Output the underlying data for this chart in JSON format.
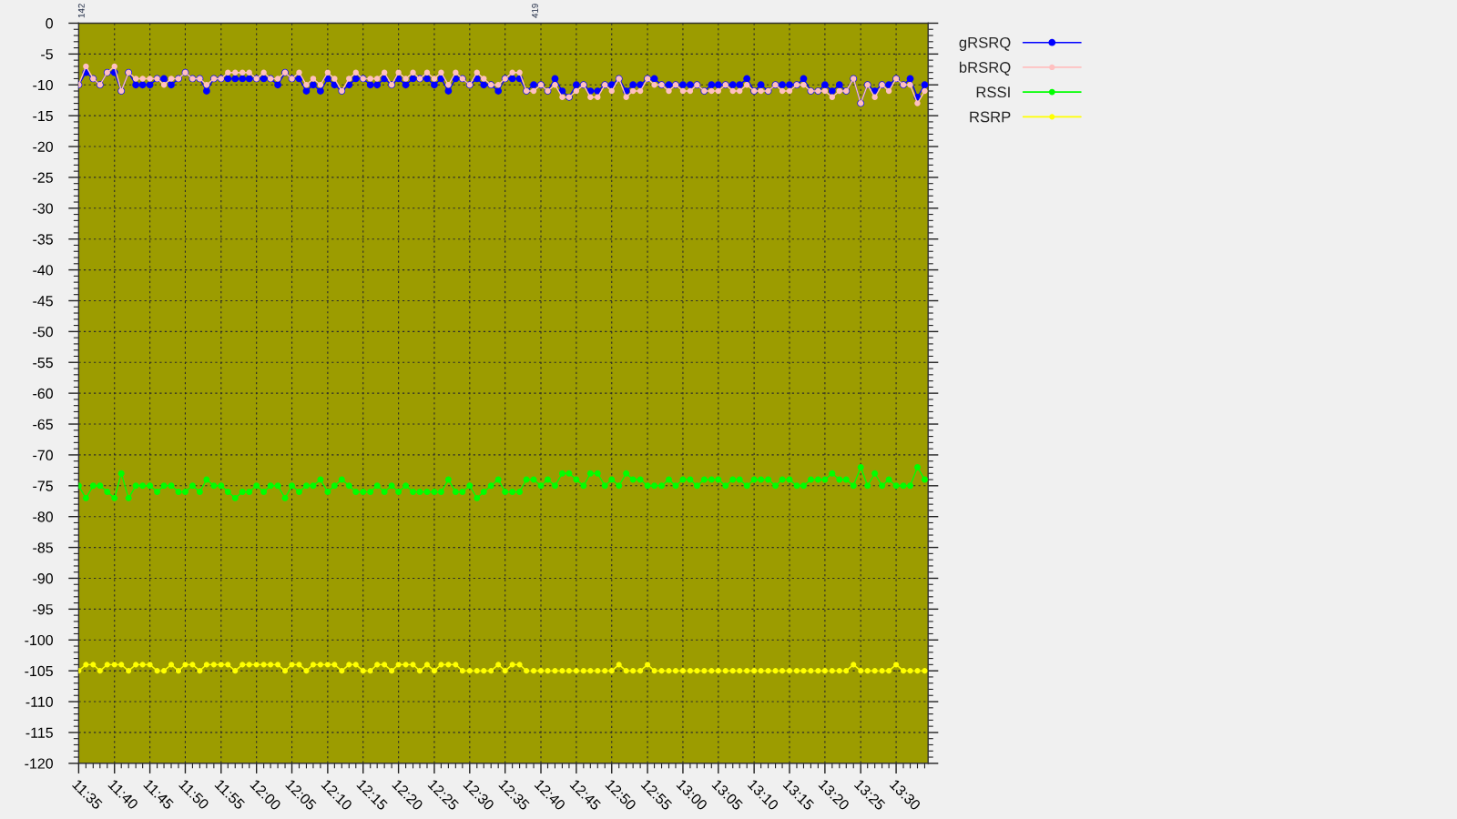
{
  "chart_data": {
    "type": "line",
    "x": [
      11.583,
      11.6,
      11.617,
      11.633,
      11.65,
      11.667,
      11.683,
      11.7,
      11.717,
      11.733,
      11.75,
      11.767,
      11.783,
      11.8,
      11.817,
      11.833,
      11.85,
      11.867,
      11.883,
      11.9,
      11.917,
      11.933,
      11.95,
      11.967,
      11.983,
      12,
      12.017,
      12.033,
      12.05,
      12.067,
      12.083,
      12.1,
      12.117,
      12.133,
      12.15,
      12.167,
      12.183,
      12.2,
      12.217,
      12.233,
      12.25,
      12.267,
      12.283,
      12.3,
      12.317,
      12.333,
      12.35,
      12.367,
      12.383,
      12.4,
      12.417,
      12.433,
      12.45,
      12.467,
      12.483,
      12.5,
      12.517,
      12.533,
      12.55,
      12.567,
      12.583,
      12.6,
      12.617,
      12.633,
      12.65,
      12.667,
      12.683,
      12.7,
      12.717,
      12.733,
      12.75,
      12.767,
      12.783,
      12.8,
      12.817,
      12.833,
      12.85,
      12.867,
      12.883,
      12.9,
      12.917,
      12.933,
      12.95,
      12.967,
      12.983,
      13,
      13.017,
      13.033,
      13.05,
      13.067,
      13.083,
      13.1,
      13.117,
      13.133,
      13.15,
      13.167,
      13.183,
      13.2,
      13.217,
      13.233,
      13.25,
      13.267,
      13.283,
      13.3,
      13.317,
      13.333,
      13.35,
      13.367,
      13.383,
      13.4,
      13.417,
      13.433,
      13.45,
      13.467,
      13.483,
      13.5,
      13.517,
      13.533,
      13.55,
      13.567
    ],
    "series": [
      {
        "name": "gRSRQ",
        "color": "#0000ff",
        "values": [
          -10,
          -8,
          -9,
          -10,
          -8,
          -8,
          -11,
          -8,
          -10,
          -10,
          -10,
          -9,
          -9,
          -10,
          -9,
          -8,
          -9,
          -9,
          -11,
          -9,
          -9,
          -9,
          -9,
          -9,
          -9,
          -9,
          -9,
          -9,
          -10,
          -8,
          -9,
          -9,
          -11,
          -10,
          -11,
          -9,
          -10,
          -11,
          -10,
          -9,
          -9,
          -10,
          -10,
          -9,
          -10,
          -9,
          -10,
          -9,
          -9,
          -9,
          -10,
          -9,
          -11,
          -9,
          -9,
          -10,
          -9,
          -10,
          -10,
          -11,
          -9,
          -9,
          -9,
          -11,
          -10,
          -10,
          -11,
          -9,
          -11,
          -12,
          -10,
          -10,
          -11,
          -11,
          -10,
          -10,
          -9,
          -11,
          -10,
          -10,
          -9,
          -9,
          -10,
          -10,
          -10,
          -10,
          -10,
          -10,
          -11,
          -10,
          -10,
          -10,
          -10,
          -10,
          -9,
          -11,
          -10,
          -11,
          -10,
          -10,
          -10,
          -10,
          -9,
          -11,
          -11,
          -10,
          -11,
          -10,
          -11,
          -9,
          -13,
          -10,
          -11,
          -10,
          -10,
          -9,
          -10,
          -9,
          -12,
          -10
        ]
      },
      {
        "name": "bRSRQ",
        "color": "#ffc0c0",
        "values": [
          -10,
          -7,
          -9,
          -10,
          -8,
          -7,
          -11,
          -8,
          -9,
          -9,
          -9,
          -9,
          -10,
          -9,
          -9,
          -8,
          -9,
          -9,
          -10,
          -9,
          -9,
          -8,
          -8,
          -8,
          -8,
          -9,
          -8,
          -9,
          -9,
          -8,
          -9,
          -8,
          -10,
          -9,
          -10,
          -8,
          -9,
          -11,
          -9,
          -8,
          -9,
          -9,
          -9,
          -8,
          -10,
          -8,
          -9,
          -8,
          -9,
          -8,
          -9,
          -8,
          -10,
          -8,
          -9,
          -10,
          -8,
          -9,
          -10,
          -10,
          -9,
          -8,
          -8,
          -11,
          -11,
          -10,
          -11,
          -10,
          -12,
          -12,
          -11,
          -10,
          -12,
          -12,
          -10,
          -11,
          -9,
          -12,
          -11,
          -11,
          -9,
          -10,
          -10,
          -11,
          -10,
          -11,
          -11,
          -10,
          -11,
          -11,
          -11,
          -10,
          -11,
          -11,
          -10,
          -11,
          -11,
          -11,
          -10,
          -11,
          -11,
          -10,
          -10,
          -11,
          -11,
          -11,
          -12,
          -11,
          -11,
          -9,
          -13,
          -10,
          -12,
          -10,
          -11,
          -9,
          -10,
          -10,
          -13,
          -11
        ]
      },
      {
        "name": "RSSI",
        "color": "#00ff00",
        "values": [
          -75,
          -77,
          -75,
          -75,
          -76,
          -77,
          -73,
          -77,
          -75,
          -75,
          -75,
          -76,
          -75,
          -75,
          -76,
          -76,
          -75,
          -76,
          -74,
          -75,
          -75,
          -76,
          -77,
          -76,
          -76,
          -75,
          -76,
          -75,
          -75,
          -77,
          -75,
          -76,
          -75,
          -75,
          -74,
          -76,
          -75,
          -74,
          -75,
          -76,
          -76,
          -76,
          -75,
          -76,
          -75,
          -76,
          -75,
          -76,
          -76,
          -76,
          -76,
          -76,
          -74,
          -76,
          -76,
          -75,
          -77,
          -76,
          -75,
          -74,
          -76,
          -76,
          -76,
          -74,
          -74,
          -75,
          -74,
          -75,
          -73,
          -73,
          -74,
          -75,
          -73,
          -73,
          -75,
          -74,
          -75,
          -73,
          -74,
          -74,
          -75,
          -75,
          -75,
          -74,
          -75,
          -74,
          -74,
          -75,
          -74,
          -74,
          -74,
          -75,
          -74,
          -74,
          -75,
          -74,
          -74,
          -74,
          -75,
          -74,
          -74,
          -75,
          -75,
          -74,
          -74,
          -74,
          -73,
          -74,
          -74,
          -75,
          -72,
          -75,
          -73,
          -75,
          -74,
          -75,
          -75,
          -75,
          -72,
          -74
        ]
      },
      {
        "name": "RSRP",
        "color": "#ffff00",
        "values": [
          -105,
          -104,
          -104,
          -105,
          -104,
          -104,
          -104,
          -105,
          -104,
          -104,
          -104,
          -105,
          -105,
          -104,
          -105,
          -104,
          -104,
          -105,
          -104,
          -104,
          -104,
          -104,
          -105,
          -104,
          -104,
          -104,
          -104,
          -104,
          -104,
          -105,
          -104,
          -104,
          -105,
          -104,
          -104,
          -104,
          -104,
          -105,
          -104,
          -104,
          -105,
          -105,
          -104,
          -104,
          -105,
          -104,
          -104,
          -104,
          -105,
          -104,
          -105,
          -104,
          -104,
          -104,
          -105,
          -105,
          -105,
          -105,
          -105,
          -104,
          -105,
          -104,
          -104,
          -105,
          -105,
          -105,
          -105,
          -105,
          -105,
          -105,
          -105,
          -105,
          -105,
          -105,
          -105,
          -105,
          -104,
          -105,
          -105,
          -105,
          -104,
          -105,
          -105,
          -105,
          -105,
          -105,
          -105,
          -105,
          -105,
          -105,
          -105,
          -105,
          -105,
          -105,
          -105,
          -105,
          -105,
          -105,
          -105,
          -105,
          -105,
          -105,
          -105,
          -105,
          -105,
          -105,
          -105,
          -105,
          -105,
          -104,
          -105,
          -105,
          -105,
          -105,
          -105,
          -104,
          -105,
          -105,
          -105,
          -105
        ]
      }
    ],
    "xlim": [
      11.583,
      13.575
    ],
    "xticks": [
      {
        "value": 11.583,
        "label": "11:35"
      },
      {
        "value": 11.667,
        "label": "11:40"
      },
      {
        "value": 11.75,
        "label": "11:45"
      },
      {
        "value": 11.833,
        "label": "11:50"
      },
      {
        "value": 11.917,
        "label": "11:55"
      },
      {
        "value": 12,
        "label": "12:00"
      },
      {
        "value": 12.083,
        "label": "12:05"
      },
      {
        "value": 12.167,
        "label": "12:10"
      },
      {
        "value": 12.25,
        "label": "12:15"
      },
      {
        "value": 12.333,
        "label": "12:20"
      },
      {
        "value": 12.417,
        "label": "12:25"
      },
      {
        "value": 12.5,
        "label": "12:30"
      },
      {
        "value": 12.583,
        "label": "12:35"
      },
      {
        "value": 12.667,
        "label": "12:40"
      },
      {
        "value": 12.75,
        "label": "12:45"
      },
      {
        "value": 12.833,
        "label": "12:50"
      },
      {
        "value": 12.917,
        "label": "12:55"
      },
      {
        "value": 13,
        "label": "13:00"
      },
      {
        "value": 13.083,
        "label": "13:05"
      },
      {
        "value": 13.167,
        "label": "13:10"
      },
      {
        "value": 13.25,
        "label": "13:15"
      },
      {
        "value": 13.333,
        "label": "13:20"
      },
      {
        "value": 13.417,
        "label": "13:25"
      },
      {
        "value": 13.5,
        "label": "13:30"
      }
    ],
    "ylim": [
      -120,
      0
    ],
    "yticks": [
      0,
      -5,
      -10,
      -15,
      -20,
      -25,
      -30,
      -35,
      -40,
      -45,
      -50,
      -55,
      -60,
      -65,
      -70,
      -75,
      -80,
      -85,
      -90,
      -95,
      -100,
      -105,
      -110,
      -115,
      -120
    ],
    "annotations": [
      "142",
      "419"
    ],
    "grid": true,
    "legend": "top right",
    "marker": "circle",
    "line_style": "solid"
  }
}
